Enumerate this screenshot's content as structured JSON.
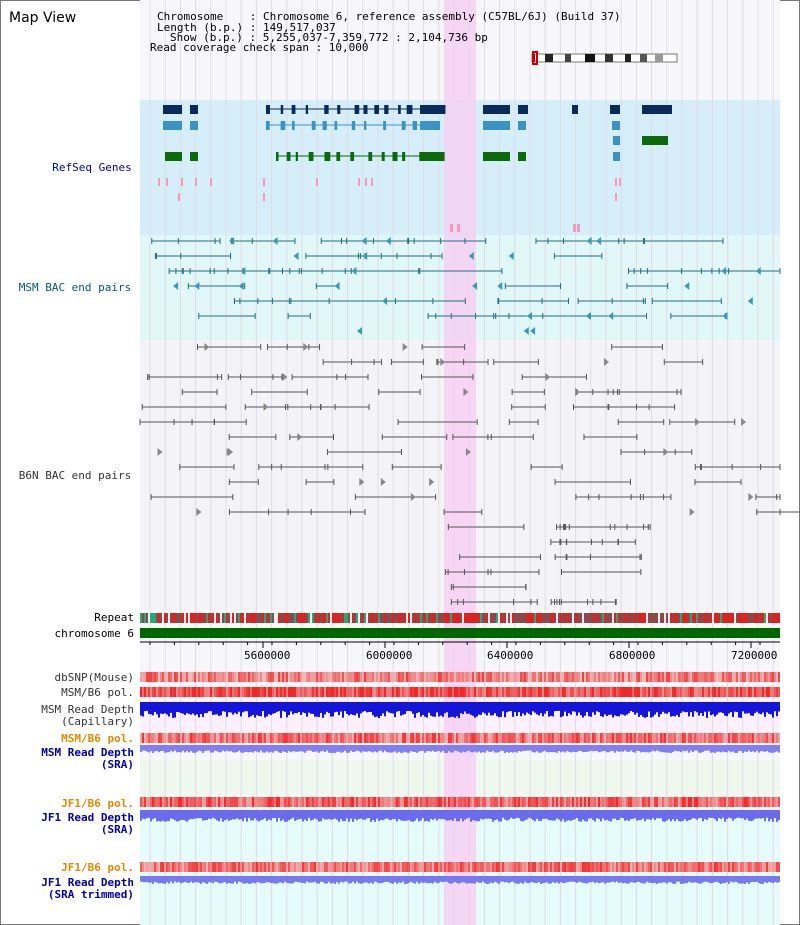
{
  "title": "Map View",
  "info": {
    "chromosome": "Chromosome    : Chromosome 6, reference assembly (C57BL/6J) (Build 37)",
    "length": "Length (b.p.) : 149,517,037",
    "show": "Show (b.p.) : 5,255,037-7,359,772 : 2,104,736 bp",
    "coverage": "Read coverage check span : 10,000"
  },
  "tracks": {
    "refseq": "RefSeq Genes",
    "msm_bac": "MSM BAC end pairs",
    "b6n_bac": "B6N BAC end pairs",
    "repeat": "Repeat",
    "chromosome": "chromosome 6",
    "dbsnp": "dbSNP(Mouse)",
    "msm_pol1": "MSM/B6 pol.",
    "msm_depth_cap_1": "MSM Read Depth",
    "msm_depth_cap_2": "(Capillary)",
    "msm_pol2": "MSM/B6 pol.",
    "msm_depth_sra_1": "MSM Read Depth",
    "msm_depth_sra_2": "(SRA)",
    "jf1_pol1": "JF1/B6 pol.",
    "jf1_depth_sra_1": "JF1 Read Depth",
    "jf1_depth_sra_2": "(SRA)",
    "jf1_pol2": "JF1/B6 pol.",
    "jf1_depth_trim_1": "JF1 Read Depth",
    "jf1_depth_trim_2": "(SRA trimmed)"
  },
  "axis": {
    "ticks": [
      "5600000",
      "6000000",
      "6400000",
      "6800000",
      "7200000"
    ]
  },
  "colors": {
    "refseq_bg": "#d6eefa",
    "msm_bg": "#e2f7f7",
    "gene_dark": "#0b2a5c",
    "gene_mid": "#3a93c4",
    "gene_green": "#0a6b0a",
    "pink_highlight": "#f6d0f3",
    "label_blue": "#0000aa",
    "label_teal": "#005a6e",
    "label_orange": "#e08a00",
    "chrom_green": "#006600"
  }
}
